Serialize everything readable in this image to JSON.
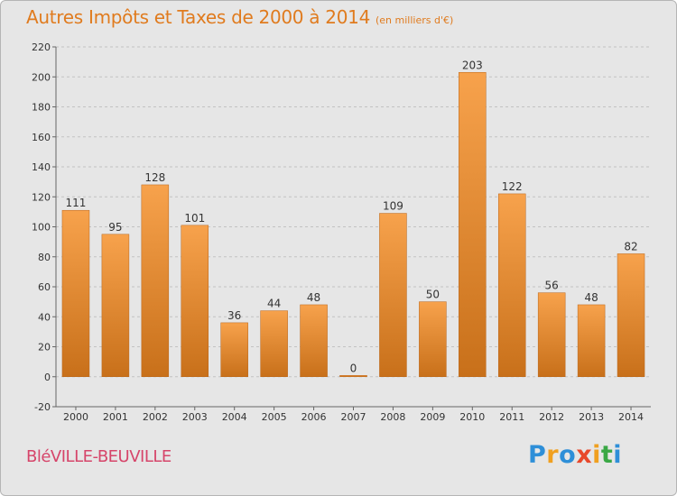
{
  "header": {
    "title": "Autres Impôts et Taxes de 2000 à 2014",
    "unit": "(en milliers d'€)"
  },
  "footer": {
    "city": "BléVILLE-BEUVILLE",
    "logo_text": "Proxiti"
  },
  "colors": {
    "title": "#e07b1e",
    "city": "#d6456a",
    "bar_light": "#f7a24c",
    "bar_dark": "#c8701a",
    "background": "#e6e6e6",
    "logo": [
      "#2e8fd8",
      "#f0a020",
      "#2e8fd8",
      "#e8482b",
      "#f0a020",
      "#3aa845",
      "#2e8fd8"
    ]
  },
  "chart_data": {
    "type": "bar",
    "categories": [
      "2000",
      "2001",
      "2002",
      "2003",
      "2004",
      "2005",
      "2006",
      "2007",
      "2008",
      "2009",
      "2010",
      "2011",
      "2012",
      "2013",
      "2014"
    ],
    "values": [
      111,
      95,
      128,
      101,
      36,
      44,
      48,
      0,
      109,
      50,
      203,
      122,
      56,
      48,
      82
    ],
    "ylim": [
      -20,
      220
    ],
    "yticks": [
      -20,
      0,
      20,
      40,
      60,
      80,
      100,
      120,
      140,
      160,
      180,
      200,
      220
    ],
    "grid": true
  }
}
